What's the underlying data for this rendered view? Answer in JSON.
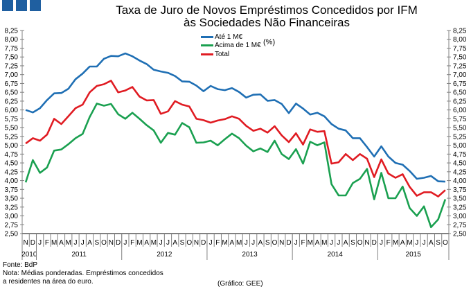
{
  "title_line1": "Taxa de Juro de Novos Empréstimos Concedidos por IFM",
  "title_line2": "às Sociedades Não Financeiras",
  "unit": "(%)",
  "source": "Fonte: BdP",
  "note_line1": "Nota: Médias ponderadas. Empréstimos concedidos",
  "note_line2": "a residentes na área do euro.",
  "credit": "(Gráfico: GEE)",
  "colors": {
    "logo": "#1f5fa0"
  },
  "chart_data": {
    "type": "line",
    "title": "Taxa de Juro de Novos Empréstimos Concedidos por IFM às Sociedades Não Financeiras",
    "ylabel": "(%)",
    "ylim": [
      2.5,
      8.25
    ],
    "ytick_step": 0.25,
    "yticks": [
      "2,50",
      "2,75",
      "3,00",
      "3,25",
      "3,50",
      "3,75",
      "4,00",
      "4,25",
      "4,50",
      "4,75",
      "5,00",
      "5,25",
      "5,50",
      "5,75",
      "6,00",
      "6,25",
      "6,50",
      "6,75",
      "7,00",
      "7,25",
      "7,50",
      "7,75",
      "8,00",
      "8,25"
    ],
    "grid": false,
    "legend_position": "top-center",
    "month_labels": [
      "N",
      "D",
      "J",
      "F",
      "M",
      "A",
      "M",
      "J",
      "J",
      "A",
      "S",
      "O",
      "N",
      "D",
      "J",
      "F",
      "M",
      "A",
      "M",
      "J",
      "J",
      "A",
      "S",
      "O",
      "N",
      "D",
      "J",
      "F",
      "M",
      "A",
      "M",
      "J",
      "J",
      "A",
      "S",
      "O",
      "N",
      "D",
      "J",
      "F",
      "M",
      "A",
      "M",
      "J",
      "J",
      "A",
      "S",
      "O",
      "N",
      "D",
      "J",
      "F",
      "M",
      "A",
      "M",
      "J",
      "J",
      "A",
      "S",
      "O"
    ],
    "years": [
      {
        "label": "2010",
        "months": 2
      },
      {
        "label": "2011",
        "months": 12
      },
      {
        "label": "2012",
        "months": 12
      },
      {
        "label": "2013",
        "months": 12
      },
      {
        "label": "2014",
        "months": 12
      },
      {
        "label": "2015",
        "months": 10
      }
    ],
    "series": [
      {
        "name": "Até 1 M€",
        "color": "#1f6fb4",
        "values": [
          6.0,
          5.93,
          6.05,
          6.28,
          6.47,
          6.48,
          6.6,
          6.87,
          7.03,
          7.23,
          7.23,
          7.45,
          7.53,
          7.52,
          7.6,
          7.52,
          7.4,
          7.3,
          7.14,
          7.09,
          7.05,
          6.96,
          6.81,
          6.8,
          6.69,
          6.53,
          6.68,
          6.59,
          6.56,
          6.62,
          6.51,
          6.35,
          6.43,
          6.44,
          6.26,
          6.28,
          6.17,
          5.91,
          6.18,
          6.04,
          5.87,
          5.92,
          5.82,
          5.6,
          5.47,
          5.42,
          5.2,
          5.2,
          4.95,
          4.68,
          4.97,
          4.68,
          4.5,
          4.45,
          4.27,
          4.05,
          4.08,
          4.13,
          3.98,
          3.97
        ]
      },
      {
        "name": "Acima de 1 M€",
        "color": "#1aa050",
        "values": [
          3.95,
          4.58,
          4.22,
          4.37,
          4.85,
          4.88,
          5.03,
          5.2,
          5.32,
          5.8,
          6.18,
          6.12,
          6.17,
          5.88,
          5.75,
          5.92,
          5.75,
          5.57,
          5.42,
          5.07,
          5.35,
          5.3,
          5.63,
          5.51,
          5.07,
          5.08,
          5.13,
          5.0,
          5.17,
          5.33,
          5.2,
          4.99,
          4.83,
          4.91,
          4.81,
          5.13,
          4.75,
          4.61,
          4.89,
          4.48,
          5.1,
          5.0,
          5.08,
          3.9,
          3.58,
          3.58,
          3.93,
          4.05,
          4.33,
          3.47,
          4.22,
          3.5,
          3.5,
          3.83,
          3.22,
          3.0,
          3.27,
          2.68,
          2.9,
          3.47
        ]
      },
      {
        "name": "Total",
        "color": "#e01b22",
        "values": [
          5.05,
          5.2,
          5.13,
          5.3,
          5.75,
          5.6,
          5.82,
          6.05,
          6.15,
          6.5,
          6.68,
          6.73,
          6.83,
          6.5,
          6.55,
          6.65,
          6.38,
          6.27,
          6.28,
          5.89,
          5.96,
          6.25,
          6.15,
          6.1,
          5.75,
          5.71,
          5.64,
          5.7,
          5.74,
          5.82,
          5.75,
          5.55,
          5.41,
          5.47,
          5.36,
          5.54,
          5.28,
          5.09,
          5.34,
          5.02,
          5.45,
          5.38,
          5.4,
          4.48,
          4.52,
          4.75,
          4.58,
          4.75,
          4.62,
          4.1,
          4.6,
          4.2,
          4.08,
          4.18,
          3.82,
          3.57,
          3.67,
          3.67,
          3.55,
          3.73
        ]
      }
    ]
  }
}
